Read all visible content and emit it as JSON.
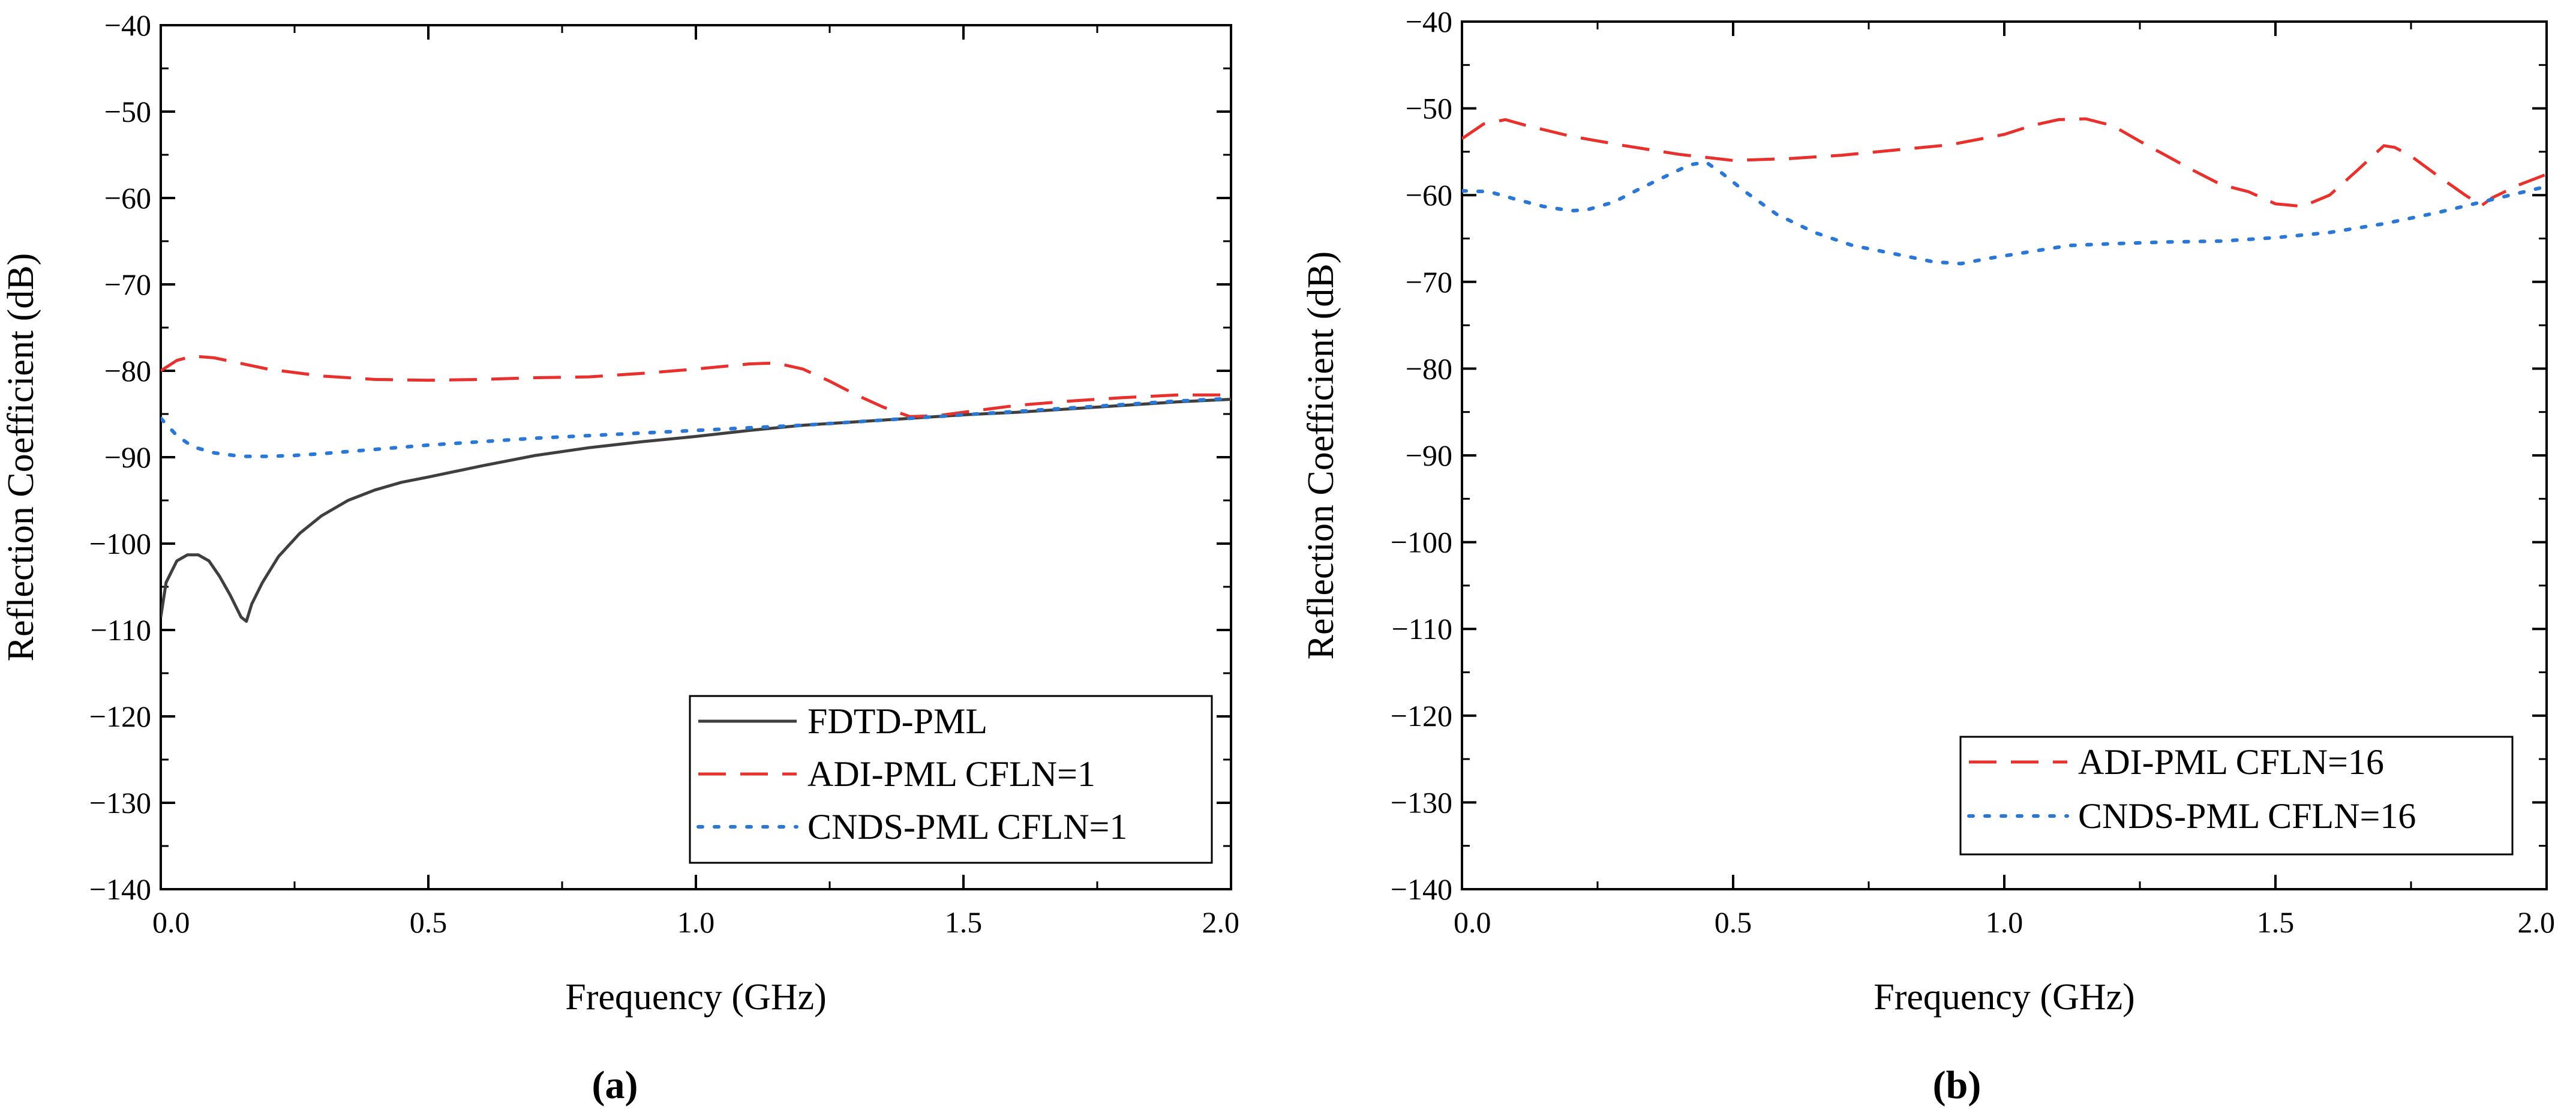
{
  "chart_data": [
    {
      "panel": "a",
      "panel_label": "(a)",
      "type": "line",
      "title": "",
      "xlabel": "Frequency (GHz)",
      "ylabel": "Reflection Coefficient (dB)",
      "xlim": [
        0.0,
        2.0
      ],
      "ylim": [
        -140,
        -40
      ],
      "xticks": [
        0.0,
        0.5,
        1.0,
        1.5,
        2.0
      ],
      "xtick_labels": [
        "0.0",
        "0.5",
        "1.0",
        "1.5",
        "2.0"
      ],
      "yticks": [
        -40,
        -50,
        -60,
        -70,
        -80,
        -90,
        -100,
        -110,
        -120,
        -130,
        -140
      ],
      "ytick_labels": [
        "−40",
        "−50",
        "−60",
        "−70",
        "−80",
        "−90",
        "−100",
        "−110",
        "−120",
        "−130",
        "−140"
      ],
      "grid": false,
      "legend_position": "bottom-right",
      "series": [
        {
          "name": "FDTD-PML",
          "color": "#3f3f3f",
          "style": "solid",
          "x": [
            0.0,
            0.01,
            0.03,
            0.05,
            0.07,
            0.09,
            0.11,
            0.13,
            0.15,
            0.16,
            0.17,
            0.19,
            0.22,
            0.26,
            0.3,
            0.35,
            0.4,
            0.45,
            0.5,
            0.6,
            0.7,
            0.8,
            0.9,
            1.0,
            1.1,
            1.2,
            1.3,
            1.4,
            1.5,
            1.6,
            1.7,
            1.8,
            1.9,
            2.0
          ],
          "y": [
            -108.5,
            -104.5,
            -102.0,
            -101.3,
            -101.3,
            -102.0,
            -103.8,
            -106.0,
            -108.5,
            -109.0,
            -107.0,
            -104.5,
            -101.5,
            -98.8,
            -96.8,
            -95.0,
            -93.8,
            -92.9,
            -92.3,
            -91.0,
            -89.8,
            -88.9,
            -88.2,
            -87.6,
            -86.9,
            -86.3,
            -85.9,
            -85.5,
            -85.1,
            -84.8,
            -84.4,
            -84.0,
            -83.6,
            -83.3
          ]
        },
        {
          "name": "ADI-PML CFLN=1",
          "color": "#e8302c",
          "style": "dashed",
          "x": [
            0.0,
            0.03,
            0.06,
            0.1,
            0.2,
            0.3,
            0.4,
            0.5,
            0.6,
            0.7,
            0.8,
            0.9,
            1.0,
            1.1,
            1.15,
            1.2,
            1.25,
            1.3,
            1.35,
            1.4,
            1.45,
            1.5,
            1.6,
            1.7,
            1.8,
            1.9,
            2.0
          ],
          "y": [
            -80.0,
            -78.8,
            -78.3,
            -78.5,
            -79.8,
            -80.6,
            -81.0,
            -81.1,
            -81.0,
            -80.8,
            -80.7,
            -80.3,
            -79.8,
            -79.2,
            -79.1,
            -79.8,
            -81.2,
            -82.8,
            -84.2,
            -85.3,
            -85.2,
            -84.8,
            -84.0,
            -83.5,
            -83.1,
            -82.8,
            -82.8
          ]
        },
        {
          "name": "CNDS-PML CFLN=1",
          "color": "#2a77d6",
          "style": "dotted",
          "x": [
            0.0,
            0.03,
            0.06,
            0.1,
            0.15,
            0.2,
            0.25,
            0.3,
            0.4,
            0.5,
            0.6,
            0.7,
            0.8,
            0.9,
            1.0,
            1.1,
            1.2,
            1.3,
            1.4,
            1.5,
            1.6,
            1.7,
            1.8,
            1.9,
            2.0
          ],
          "y": [
            -85.5,
            -87.5,
            -88.8,
            -89.5,
            -89.9,
            -89.9,
            -89.8,
            -89.6,
            -89.1,
            -88.6,
            -88.2,
            -87.8,
            -87.5,
            -87.2,
            -86.9,
            -86.6,
            -86.3,
            -85.9,
            -85.5,
            -85.1,
            -84.7,
            -84.3,
            -83.9,
            -83.5,
            -83.2
          ]
        }
      ]
    },
    {
      "panel": "b",
      "panel_label": "(b)",
      "type": "line",
      "title": "",
      "xlabel": "Frequency (GHz)",
      "ylabel": "Reflection Coefficient (dB)",
      "xlim": [
        0.0,
        2.0
      ],
      "ylim": [
        -140,
        -40
      ],
      "xticks": [
        0.0,
        0.5,
        1.0,
        1.5,
        2.0
      ],
      "xtick_labels": [
        "0.0",
        "0.5",
        "1.0",
        "1.5",
        "2.0"
      ],
      "yticks": [
        -40,
        -50,
        -60,
        -70,
        -80,
        -90,
        -100,
        -110,
        -120,
        -130,
        -140
      ],
      "ytick_labels": [
        "−40",
        "−50",
        "−60",
        "−70",
        "−80",
        "−90",
        "−100",
        "−110",
        "−120",
        "−130",
        "−140"
      ],
      "grid": false,
      "legend_position": "bottom-right",
      "series": [
        {
          "name": "ADI-PML CFLN=16",
          "color": "#e8302c",
          "style": "dashed",
          "x": [
            0.0,
            0.04,
            0.08,
            0.12,
            0.2,
            0.3,
            0.4,
            0.5,
            0.6,
            0.7,
            0.8,
            0.9,
            1.0,
            1.05,
            1.1,
            1.15,
            1.2,
            1.25,
            1.3,
            1.35,
            1.4,
            1.45,
            1.5,
            1.55,
            1.6,
            1.65,
            1.7,
            1.72,
            1.75,
            1.8,
            1.85,
            1.88,
            1.9,
            1.95,
            2.0
          ],
          "y": [
            -53.5,
            -51.8,
            -51.3,
            -52.0,
            -53.2,
            -54.3,
            -55.3,
            -56.0,
            -55.8,
            -55.4,
            -54.8,
            -54.2,
            -53.0,
            -52.0,
            -51.3,
            -51.2,
            -52.0,
            -53.8,
            -55.5,
            -57.2,
            -58.8,
            -59.6,
            -61.0,
            -61.3,
            -60.0,
            -57.2,
            -54.3,
            -54.5,
            -55.5,
            -57.8,
            -60.0,
            -61.2,
            -60.3,
            -58.8,
            -57.6
          ]
        },
        {
          "name": "CNDS-PML CFLN=16",
          "color": "#2a77d6",
          "style": "dotted",
          "x": [
            0.0,
            0.05,
            0.1,
            0.15,
            0.2,
            0.23,
            0.28,
            0.33,
            0.38,
            0.42,
            0.45,
            0.48,
            0.52,
            0.58,
            0.65,
            0.72,
            0.8,
            0.87,
            0.92,
            0.97,
            1.05,
            1.12,
            1.2,
            1.3,
            1.4,
            1.5,
            1.6,
            1.7,
            1.8,
            1.9,
            2.0
          ],
          "y": [
            -59.5,
            -59.6,
            -60.5,
            -61.3,
            -61.8,
            -61.7,
            -60.8,
            -59.2,
            -57.7,
            -56.5,
            -56.2,
            -57.5,
            -59.5,
            -62.2,
            -64.3,
            -65.8,
            -66.8,
            -67.7,
            -67.9,
            -67.3,
            -66.5,
            -65.8,
            -65.6,
            -65.4,
            -65.3,
            -64.9,
            -64.3,
            -63.3,
            -62.0,
            -60.5,
            -59.0
          ]
        }
      ]
    }
  ]
}
